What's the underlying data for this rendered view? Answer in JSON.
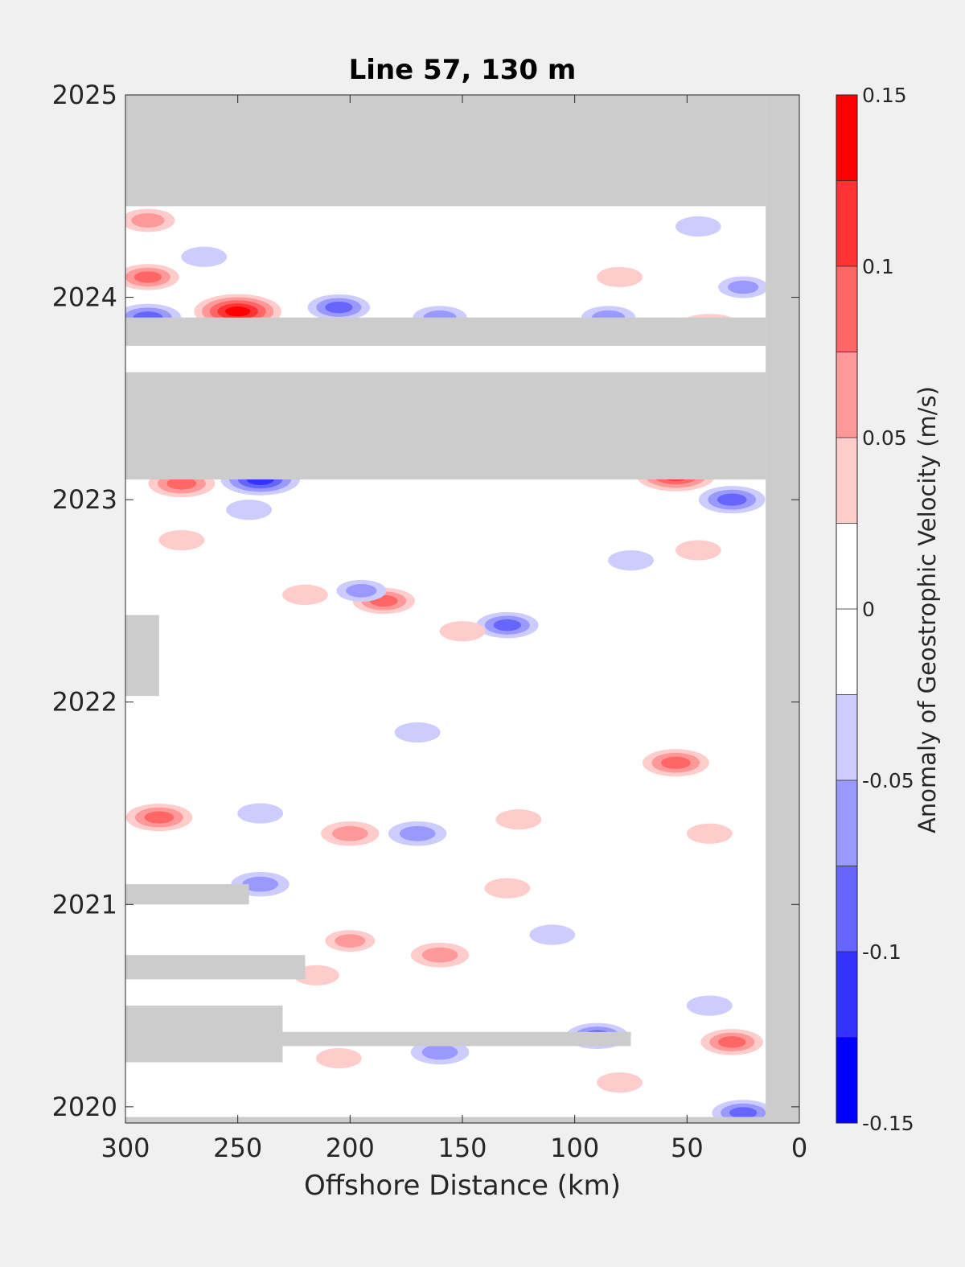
{
  "chart_data": {
    "type": "heatmap",
    "subtype": "filled-contour",
    "title": "Line 57, 130 m",
    "xlabel": "Offshore Distance (km)",
    "ylabel": "",
    "x_reversed": true,
    "xlim": [
      0,
      300
    ],
    "ylim": [
      2019.92,
      2025
    ],
    "xticks": [
      "300",
      "250",
      "200",
      "150",
      "100",
      "50",
      "0"
    ],
    "xtick_values": [
      300,
      250,
      200,
      150,
      100,
      50,
      0
    ],
    "yticks": [
      "2020",
      "2021",
      "2022",
      "2023",
      "2024",
      "2025"
    ],
    "ytick_values": [
      2020,
      2021,
      2022,
      2023,
      2024,
      2025
    ],
    "grid": false,
    "colorbar": {
      "label": "Anomaly of Geostrophic Velocity (m/s)",
      "range": [
        -0.15,
        0.15
      ],
      "ticks": [
        "0.15",
        "0.1",
        "0.05",
        "0",
        "-0.05",
        "-0.1",
        "-0.15"
      ],
      "tick_values": [
        0.15,
        0.1,
        0.05,
        0,
        -0.05,
        -0.1,
        -0.15
      ],
      "levels": [
        0.15,
        0.125,
        0.1,
        0.075,
        0.05,
        0.025,
        0,
        -0.025,
        -0.05,
        -0.075,
        -0.1,
        -0.125,
        -0.15
      ],
      "colors_top_to_bottom": [
        "#ff0000",
        "#ff3333",
        "#ff6666",
        "#ff9999",
        "#ffcccc",
        "#ffffff",
        "#ffffff",
        "#ccccff",
        "#9999ff",
        "#6666ff",
        "#3333ff",
        "#0000ff"
      ]
    },
    "no_data_color": "#cccccc",
    "missing_periods": [
      {
        "y0": 2024.45,
        "y1": 2025.0,
        "x0": 15,
        "x1": 300
      },
      {
        "y0": 2023.1,
        "y1": 2023.63,
        "x0": 15,
        "x1": 300
      },
      {
        "y0": 2023.76,
        "y1": 2023.9,
        "x0": 15,
        "x1": 300
      },
      {
        "y0": 2022.03,
        "y1": 2022.43,
        "x0": 285,
        "x1": 300
      },
      {
        "y0": 2021.0,
        "y1": 2021.1,
        "x0": 245,
        "x1": 300
      },
      {
        "y0": 2020.63,
        "y1": 2020.75,
        "x0": 220,
        "x1": 300
      },
      {
        "y0": 2020.3,
        "y1": 2020.37,
        "x0": 75,
        "x1": 300
      },
      {
        "y0": 2020.22,
        "y1": 2020.5,
        "x0": 230,
        "x1": 300
      },
      {
        "y0": 2019.92,
        "y1": 2019.95,
        "x0": 15,
        "x1": 300
      },
      {
        "y0": 2019.92,
        "y1": 2025.0,
        "x0": 0,
        "x1": 15
      }
    ],
    "anomalies": [
      {
        "x": 250,
        "y": 2023.93,
        "v": 0.14
      },
      {
        "x": 55,
        "y": 2023.12,
        "v": 0.12
      },
      {
        "x": 240,
        "y": 2023.1,
        "v": -0.12
      },
      {
        "x": 205,
        "y": 2023.95,
        "v": -0.08
      },
      {
        "x": 160,
        "y": 2023.9,
        "v": -0.06
      },
      {
        "x": 290,
        "y": 2023.9,
        "v": -0.09
      },
      {
        "x": 290,
        "y": 2024.1,
        "v": 0.08
      },
      {
        "x": 290,
        "y": 2024.38,
        "v": 0.06
      },
      {
        "x": 265,
        "y": 2024.2,
        "v": -0.04
      },
      {
        "x": 40,
        "y": 2023.85,
        "v": 0.09
      },
      {
        "x": 45,
        "y": 2024.35,
        "v": -0.04
      },
      {
        "x": 80,
        "y": 2024.1,
        "v": 0.04
      },
      {
        "x": 25,
        "y": 2024.05,
        "v": -0.05
      },
      {
        "x": 85,
        "y": 2023.9,
        "v": -0.06
      },
      {
        "x": 275,
        "y": 2023.08,
        "v": 0.09
      },
      {
        "x": 30,
        "y": 2023.0,
        "v": -0.09
      },
      {
        "x": 245,
        "y": 2022.95,
        "v": -0.04
      },
      {
        "x": 275,
        "y": 2022.8,
        "v": 0.04
      },
      {
        "x": 220,
        "y": 2022.53,
        "v": 0.04
      },
      {
        "x": 185,
        "y": 2022.5,
        "v": 0.08
      },
      {
        "x": 130,
        "y": 2022.38,
        "v": -0.08
      },
      {
        "x": 150,
        "y": 2022.35,
        "v": 0.04
      },
      {
        "x": 195,
        "y": 2022.55,
        "v": -0.05
      },
      {
        "x": 45,
        "y": 2022.75,
        "v": 0.04
      },
      {
        "x": 75,
        "y": 2022.7,
        "v": -0.04
      },
      {
        "x": 55,
        "y": 2021.7,
        "v": 0.09
      },
      {
        "x": 170,
        "y": 2021.85,
        "v": -0.04
      },
      {
        "x": 285,
        "y": 2021.43,
        "v": 0.09
      },
      {
        "x": 200,
        "y": 2021.35,
        "v": 0.07
      },
      {
        "x": 170,
        "y": 2021.35,
        "v": -0.07
      },
      {
        "x": 240,
        "y": 2021.45,
        "v": -0.04
      },
      {
        "x": 125,
        "y": 2021.42,
        "v": 0.04
      },
      {
        "x": 40,
        "y": 2021.35,
        "v": 0.04
      },
      {
        "x": 240,
        "y": 2021.1,
        "v": -0.07
      },
      {
        "x": 130,
        "y": 2021.08,
        "v": 0.04
      },
      {
        "x": 160,
        "y": 2020.75,
        "v": 0.07
      },
      {
        "x": 200,
        "y": 2020.82,
        "v": 0.05
      },
      {
        "x": 110,
        "y": 2020.85,
        "v": -0.04
      },
      {
        "x": 40,
        "y": 2020.5,
        "v": -0.04
      },
      {
        "x": 90,
        "y": 2020.35,
        "v": -0.08
      },
      {
        "x": 30,
        "y": 2020.32,
        "v": 0.08
      },
      {
        "x": 160,
        "y": 2020.27,
        "v": -0.07
      },
      {
        "x": 215,
        "y": 2020.65,
        "v": 0.04
      },
      {
        "x": 205,
        "y": 2020.24,
        "v": 0.04
      },
      {
        "x": 80,
        "y": 2020.12,
        "v": 0.04
      },
      {
        "x": 25,
        "y": 2019.97,
        "v": -0.08
      }
    ]
  }
}
